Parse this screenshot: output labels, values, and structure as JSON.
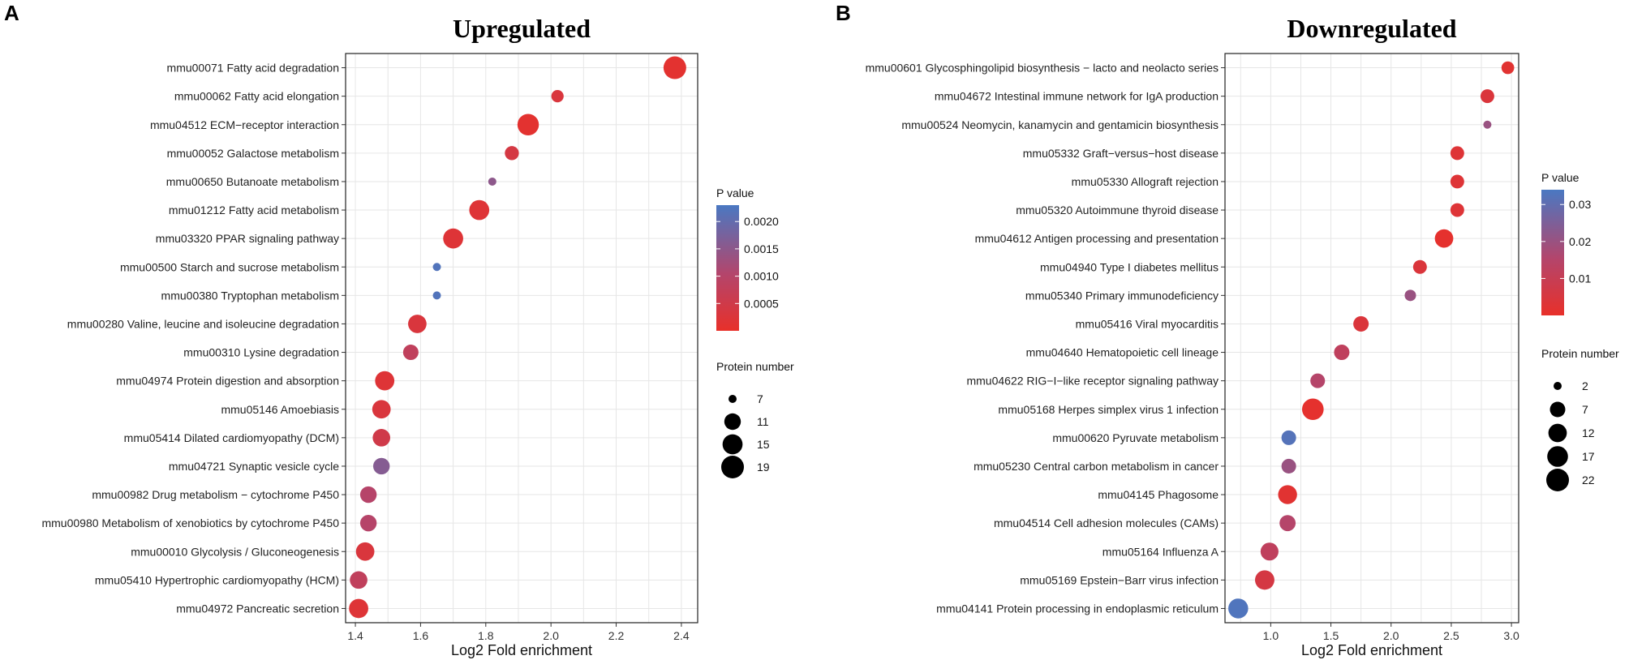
{
  "panels": {
    "A": {
      "label": "A"
    },
    "B": {
      "label": "B"
    }
  },
  "legend_a": {
    "pvalue_title": "P value",
    "size_title": "Protein number"
  },
  "legend_b": {
    "pvalue_title": "P value",
    "size_title": "Protein number"
  },
  "colors": {
    "low_p": "#e8302a",
    "high_p": "#4a78c2",
    "grid": "#e6e6e6",
    "panel_border": "#222222"
  },
  "chart_data": [
    {
      "type": "scatter",
      "panel": "A",
      "title": "Upregulated",
      "xlabel": "Log2 Fold enrichment",
      "ylabel": "",
      "xlim": [
        1.37,
        2.45
      ],
      "xticks": [
        1.4,
        1.6,
        1.8,
        2.0,
        2.2,
        2.4
      ],
      "xtick_labels": [
        "1.4",
        "1.6",
        "1.8",
        "2.0",
        "2.2",
        "2.4"
      ],
      "color_scale": {
        "title": "P value",
        "min": 0.0,
        "max": 0.0023,
        "ticks": [
          0.0005,
          0.001,
          0.0015,
          0.002
        ],
        "tick_labels": [
          "0.0005",
          "0.0010",
          "0.0015",
          "0.0020"
        ]
      },
      "size_scale": {
        "title": "Protein number",
        "min": 7,
        "max": 19,
        "ticks": [
          7,
          11,
          15,
          19
        ],
        "tick_labels": [
          "7",
          "11",
          "15",
          "19"
        ]
      },
      "points": [
        {
          "term": "mmu00071 Fatty acid degradation",
          "x": 2.38,
          "size": 19,
          "p": 0.0001
        },
        {
          "term": "mmu00062 Fatty acid elongation",
          "x": 2.02,
          "size": 8,
          "p": 0.0003
        },
        {
          "term": "mmu04512 ECM−receptor interaction",
          "x": 1.93,
          "size": 17,
          "p": 0.0001
        },
        {
          "term": "mmu00052 Galactose metabolism",
          "x": 1.88,
          "size": 9,
          "p": 0.0004
        },
        {
          "term": "mmu00650 Butanoate metabolism",
          "x": 1.82,
          "size": 6,
          "p": 0.0015
        },
        {
          "term": "mmu01212 Fatty acid metabolism",
          "x": 1.78,
          "size": 15,
          "p": 0.0002
        },
        {
          "term": "mmu03320 PPAR signaling pathway",
          "x": 1.7,
          "size": 15,
          "p": 0.0002
        },
        {
          "term": "mmu00500 Starch and sucrose metabolism",
          "x": 1.65,
          "size": 7,
          "p": 0.0022
        },
        {
          "term": "mmu00380 Tryptophan metabolism",
          "x": 1.65,
          "size": 7,
          "p": 0.0022
        },
        {
          "term": "mmu00280 Valine, leucine and isoleucine degradation",
          "x": 1.59,
          "size": 13,
          "p": 0.0003
        },
        {
          "term": "mmu00310 Lysine degradation",
          "x": 1.57,
          "size": 10,
          "p": 0.0008
        },
        {
          "term": "mmu04974 Protein digestion and absorption",
          "x": 1.49,
          "size": 14,
          "p": 0.0002
        },
        {
          "term": "mmu05146 Amoebiasis",
          "x": 1.48,
          "size": 13,
          "p": 0.0003
        },
        {
          "term": "mmu05414 Dilated cardiomyopathy (DCM)",
          "x": 1.48,
          "size": 12,
          "p": 0.0005
        },
        {
          "term": "mmu04721 Synaptic vesicle cycle",
          "x": 1.48,
          "size": 11,
          "p": 0.0016
        },
        {
          "term": "mmu00982 Drug metabolism − cytochrome P450",
          "x": 1.44,
          "size": 11,
          "p": 0.001
        },
        {
          "term": "mmu00980 Metabolism of xenobiotics by cytochrome P450",
          "x": 1.44,
          "size": 11,
          "p": 0.001
        },
        {
          "term": "mmu00010 Glycolysis / Gluconeogenesis",
          "x": 1.43,
          "size": 13,
          "p": 0.0003
        },
        {
          "term": "mmu05410 Hypertrophic cardiomyopathy (HCM)",
          "x": 1.41,
          "size": 12,
          "p": 0.0008
        },
        {
          "term": "mmu04972 Pancreatic secretion",
          "x": 1.41,
          "size": 14,
          "p": 0.0002
        }
      ]
    },
    {
      "type": "scatter",
      "panel": "B",
      "title": "Downregulated",
      "xlabel": "Log2 Fold enrichment",
      "ylabel": "",
      "xlim": [
        0.62,
        3.06
      ],
      "xticks": [
        1.0,
        1.5,
        2.0,
        2.5,
        3.0
      ],
      "xtick_labels": [
        "1.0",
        "1.5",
        "2.0",
        "2.5",
        "3.0"
      ],
      "color_scale": {
        "title": "P value",
        "min": 0.0,
        "max": 0.034,
        "ticks": [
          0.01,
          0.02,
          0.03
        ],
        "tick_labels": [
          "0.01",
          "0.02",
          "0.03"
        ]
      },
      "size_scale": {
        "title": "Protein number",
        "min": 2,
        "max": 22,
        "ticks": [
          2,
          7,
          12,
          17,
          22
        ],
        "tick_labels": [
          "2",
          "7",
          "12",
          "17",
          "22"
        ]
      },
      "points": [
        {
          "term": "mmu00601 Glycosphingolipid biosynthesis − lacto and neolacto series",
          "x": 2.97,
          "size": 4,
          "p": 0.002
        },
        {
          "term": "mmu04672 Intestinal immune network for IgA production",
          "x": 2.8,
          "size": 5,
          "p": 0.004
        },
        {
          "term": "mmu00524 Neomycin, kanamycin and gentamicin biosynthesis",
          "x": 2.8,
          "size": 2,
          "p": 0.02
        },
        {
          "term": "mmu05332 Graft−versus−host disease",
          "x": 2.55,
          "size": 5,
          "p": 0.003
        },
        {
          "term": "mmu05330 Allograft rejection",
          "x": 2.55,
          "size": 5,
          "p": 0.003
        },
        {
          "term": "mmu05320 Autoimmune thyroid disease",
          "x": 2.55,
          "size": 5,
          "p": 0.003
        },
        {
          "term": "mmu04612 Antigen processing and presentation",
          "x": 2.44,
          "size": 12,
          "p": 0.001
        },
        {
          "term": "mmu04940 Type I diabetes mellitus",
          "x": 2.24,
          "size": 5,
          "p": 0.004
        },
        {
          "term": "mmu05340 Primary immunodeficiency",
          "x": 2.16,
          "size": 3,
          "p": 0.02
        },
        {
          "term": "mmu05416 Viral myocarditis",
          "x": 1.75,
          "size": 7,
          "p": 0.004
        },
        {
          "term": "mmu04640 Hematopoietic cell lineage",
          "x": 1.59,
          "size": 7,
          "p": 0.012
        },
        {
          "term": "mmu04622 RIG−I−like receptor signaling pathway",
          "x": 1.39,
          "size": 6,
          "p": 0.015
        },
        {
          "term": "mmu05168 Herpes simplex virus 1 infection",
          "x": 1.35,
          "size": 19,
          "p": 0.001
        },
        {
          "term": "mmu00620 Pyruvate metabolism",
          "x": 1.15,
          "size": 6,
          "p": 0.032
        },
        {
          "term": "mmu05230 Central carbon metabolism in cancer",
          "x": 1.15,
          "size": 6,
          "p": 0.02
        },
        {
          "term": "mmu04145 Phagosome",
          "x": 1.14,
          "size": 13,
          "p": 0.002
        },
        {
          "term": "mmu04514 Cell adhesion molecules (CAMs)",
          "x": 1.14,
          "size": 8,
          "p": 0.015
        },
        {
          "term": "mmu05164 Influenza A",
          "x": 0.99,
          "size": 11,
          "p": 0.012
        },
        {
          "term": "mmu05169 Epstein−Barr virus infection",
          "x": 0.95,
          "size": 14,
          "p": 0.006
        },
        {
          "term": "mmu04141 Protein processing in endoplasmic reticulum",
          "x": 0.73,
          "size": 15,
          "p": 0.033
        }
      ]
    }
  ]
}
